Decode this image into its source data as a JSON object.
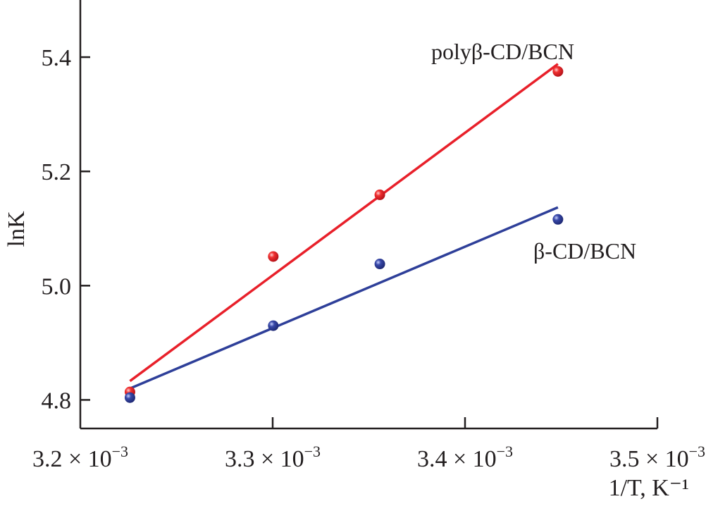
{
  "chart_data": {
    "type": "scatter",
    "title": "",
    "xlabel": "1/T, K⁻¹",
    "xlabel_parts": {
      "pre": "1/",
      "italic": "T",
      "post": ", K",
      "sup": "−1"
    },
    "ylabel": "lnK",
    "ylabel_parts": {
      "pre": "ln",
      "italic": "K"
    },
    "x_unit_multiplier": "× 10",
    "x_unit_exponent": "−3",
    "xlim": [
      3.2,
      3.5
    ],
    "ylim": [
      4.75,
      5.5
    ],
    "xticks": [
      3.2,
      3.3,
      3.4,
      3.5
    ],
    "xtick_labels": [
      "3.2",
      "3.3",
      "3.4",
      "3.5"
    ],
    "yticks": [
      4.8,
      5.0,
      5.2,
      5.4
    ],
    "ytick_labels": [
      "4.8",
      "5.0",
      "5.2",
      "5.4"
    ],
    "grid": false,
    "series": [
      {
        "name": "polyβ-CD/BCN",
        "color": "#e8202a",
        "x": [
          3.2258,
          3.3003,
          3.3557,
          3.4483
        ],
        "y": [
          4.814,
          5.051,
          5.159,
          5.375
        ],
        "fit": {
          "x": [
            3.2258,
            3.4483
          ],
          "y": [
            4.833,
            5.388
          ]
        }
      },
      {
        "name": "β-CD/BCN",
        "color": "#2e3f99",
        "x": [
          3.2258,
          3.3003,
          3.3557,
          3.4483
        ],
        "y": [
          4.804,
          4.93,
          5.038,
          5.116
        ],
        "fit": {
          "x": [
            3.2258,
            3.4483
          ],
          "y": [
            4.82,
            5.137
          ]
        }
      }
    ]
  }
}
